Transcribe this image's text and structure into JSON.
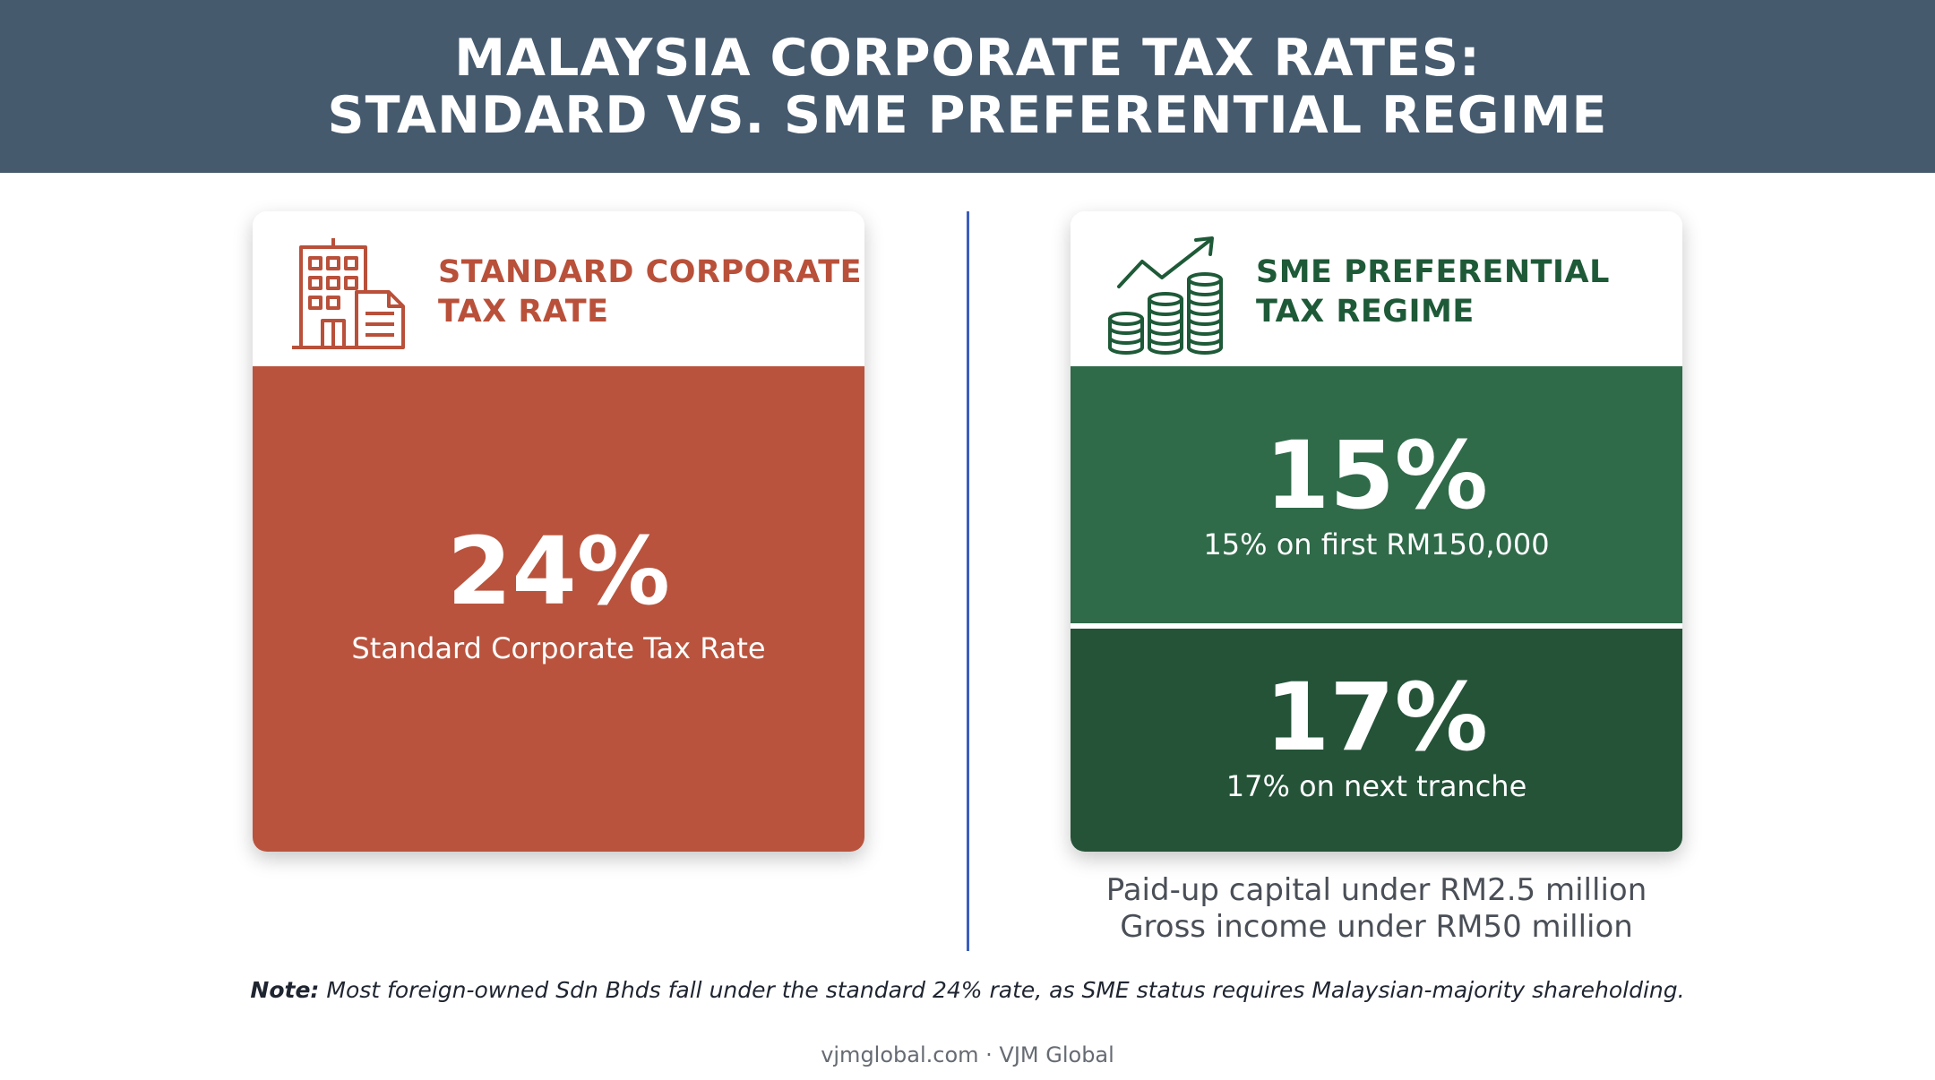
{
  "header": {
    "title_line1": "MALAYSIA CORPORATE TAX RATES:",
    "title_line2": "STANDARD VS. SME PREFERENTIAL REGIME"
  },
  "standard": {
    "icon": "office-building-document-icon",
    "title_line1": "STANDARD CORPORATE",
    "title_line2": "TAX RATE",
    "rate": "24%",
    "rate_label": "Standard Corporate Tax Rate",
    "color": "#b9533d"
  },
  "sme": {
    "icon": "coin-stacks-growth-icon",
    "title_line1": "SME PREFERENTIAL",
    "title_line2": "TAX REGIME",
    "tier1_rate": "15%",
    "tier1_label": "15% on first RM150,000",
    "tier2_rate": "17%",
    "tier2_label": "17% on next tranche",
    "color": "#2f6a49",
    "criteria_line1": "Paid-up capital under RM2.5 million",
    "criteria_line2": "Gross income under RM50 million"
  },
  "note": {
    "label": "Note:",
    "text": "Most foreign-owned Sdn Bhds fall under the standard 24% rate, as SME status requires Malaysian-majority shareholding."
  },
  "footer": {
    "credit": "vjmglobal.com · VJM Global"
  }
}
